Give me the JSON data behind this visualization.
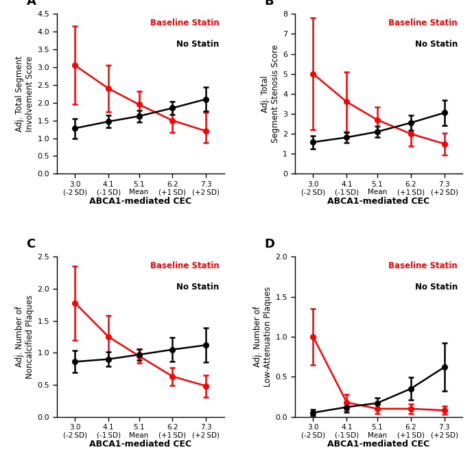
{
  "x_vals": [
    3.0,
    4.1,
    5.1,
    6.2,
    7.3
  ],
  "x_labels_top": [
    "3.0",
    "4.1",
    "5.1",
    "6.2",
    "7.3"
  ],
  "x_labels_bottom": [
    "(-2 SD)",
    "(-1 SD)",
    "Mean",
    "(+1 SD)",
    "(+2 SD)"
  ],
  "panel_A": {
    "label": "A",
    "ylabel_line1": "Adj. Total Segment",
    "ylabel_line2": "Involvement Score",
    "ylim": [
      0.0,
      4.5
    ],
    "yticks": [
      0.0,
      0.5,
      1.0,
      1.5,
      2.0,
      2.5,
      3.0,
      3.5,
      4.0,
      4.5
    ],
    "red_y": [
      3.05,
      2.4,
      1.95,
      1.5,
      1.2
    ],
    "red_yerr_lo": [
      1.1,
      0.65,
      0.38,
      0.33,
      0.33
    ],
    "red_yerr_hi": [
      1.1,
      0.65,
      0.38,
      0.33,
      0.52
    ],
    "black_y": [
      1.28,
      1.47,
      1.62,
      1.85,
      2.1
    ],
    "black_yerr_lo": [
      0.28,
      0.18,
      0.16,
      0.18,
      0.33
    ],
    "black_yerr_hi": [
      0.28,
      0.18,
      0.16,
      0.18,
      0.33
    ]
  },
  "panel_B": {
    "label": "B",
    "ylabel_line1": "Adj. Total",
    "ylabel_line2": "Segment Stenosis Score",
    "ylim": [
      0,
      8
    ],
    "yticks": [
      0,
      1,
      2,
      3,
      4,
      5,
      6,
      7,
      8
    ],
    "red_y": [
      5.0,
      3.6,
      2.7,
      2.0,
      1.5
    ],
    "red_yerr_lo": [
      2.8,
      1.5,
      0.65,
      0.6,
      0.55
    ],
    "red_yerr_hi": [
      2.8,
      1.5,
      0.65,
      0.6,
      0.55
    ],
    "black_y": [
      1.58,
      1.82,
      2.1,
      2.55,
      3.05
    ],
    "black_yerr_lo": [
      0.32,
      0.26,
      0.28,
      0.38,
      0.62
    ],
    "black_yerr_hi": [
      0.32,
      0.26,
      0.28,
      0.38,
      0.62
    ]
  },
  "panel_C": {
    "label": "C",
    "ylabel_line1": "Adj. Number of",
    "ylabel_line2": "Noncalcified Plaques",
    "ylim": [
      0.0,
      2.5
    ],
    "yticks": [
      0.0,
      0.5,
      1.0,
      1.5,
      2.0,
      2.5
    ],
    "red_y": [
      1.78,
      1.25,
      0.95,
      0.63,
      0.48
    ],
    "red_yerr_lo": [
      0.58,
      0.33,
      0.11,
      0.14,
      0.17
    ],
    "red_yerr_hi": [
      0.58,
      0.33,
      0.11,
      0.14,
      0.17
    ],
    "black_y": [
      0.86,
      0.9,
      0.97,
      1.05,
      1.12
    ],
    "black_yerr_lo": [
      0.17,
      0.11,
      0.09,
      0.19,
      0.27
    ],
    "black_yerr_hi": [
      0.17,
      0.11,
      0.09,
      0.19,
      0.27
    ]
  },
  "panel_D": {
    "label": "D",
    "ylabel_line1": "Adj. Number of",
    "ylabel_line2": "Low-Attenuation Plaques",
    "ylim": [
      0.0,
      2.0
    ],
    "yticks": [
      0.0,
      0.5,
      1.0,
      1.5,
      2.0
    ],
    "red_y": [
      1.0,
      0.18,
      0.1,
      0.1,
      0.08
    ],
    "red_yerr_lo": [
      0.35,
      0.1,
      0.06,
      0.06,
      0.05
    ],
    "red_yerr_hi": [
      0.35,
      0.1,
      0.06,
      0.06,
      0.05
    ],
    "black_y": [
      0.05,
      0.12,
      0.17,
      0.35,
      0.62
    ],
    "black_yerr_lo": [
      0.04,
      0.06,
      0.07,
      0.14,
      0.3
    ],
    "black_yerr_hi": [
      0.04,
      0.06,
      0.07,
      0.14,
      0.3
    ]
  },
  "red_color": "#ff0000",
  "black_color": "#000000",
  "marker_size": 5.5,
  "line_width": 1.8,
  "cap_size": 3,
  "legend_statin": "Baseline Statin",
  "legend_no_statin": "No Statin",
  "xlabel": "ABCA1-mediated CEC"
}
